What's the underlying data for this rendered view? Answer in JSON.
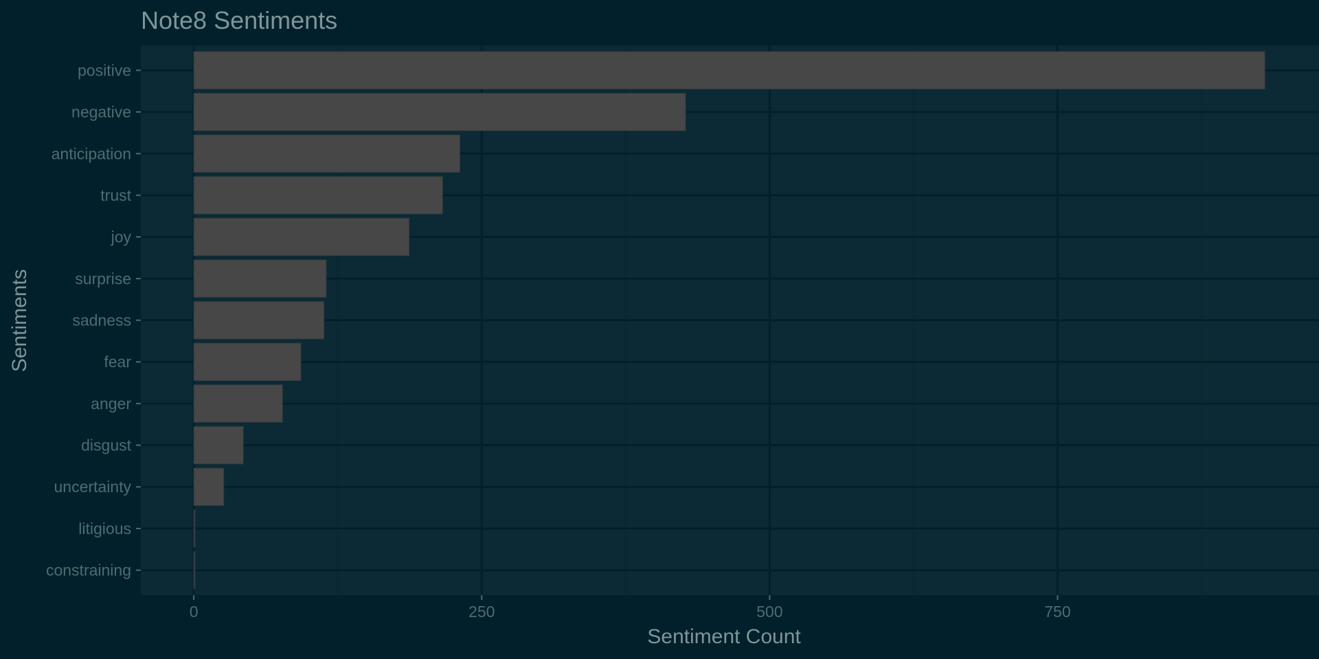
{
  "chart_data": {
    "type": "bar",
    "orientation": "horizontal",
    "title": "Note8 Sentiments",
    "xlabel": "Sentiment Count",
    "ylabel": "Sentiments",
    "categories": [
      "positive",
      "negative",
      "anticipation",
      "trust",
      "joy",
      "surprise",
      "sadness",
      "fear",
      "anger",
      "disgust",
      "uncertainty",
      "litigious",
      "constraining"
    ],
    "values": [
      930,
      427,
      231,
      216,
      187,
      115,
      113,
      93,
      77,
      43,
      26,
      1,
      1
    ],
    "xlim": [
      -46,
      977
    ],
    "xticks": [
      0,
      250,
      500,
      750
    ],
    "xtick_labels": [
      "0",
      "250",
      "500",
      "750"
    ],
    "grid": true,
    "legend": "none",
    "colors": {
      "background": "#01202b",
      "panel": "#0c2a35",
      "grid_major": "#02202b",
      "grid_minor": "#092530",
      "bar_fill": "#474747",
      "bar_outline": "#2f3a3c",
      "title_text": "#7f9599",
      "tick_text": "#4f6b72",
      "tick_mark": "#4f6b72"
    }
  }
}
